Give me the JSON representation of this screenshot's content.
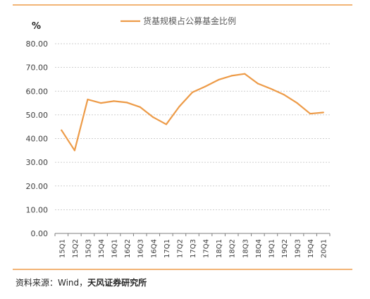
{
  "chart_data": {
    "type": "line",
    "unit_label": "%",
    "series": [
      {
        "name": "货基规模占公募基金比例",
        "values": [
          43.5,
          35.0,
          56.5,
          55.0,
          55.8,
          55.2,
          53.3,
          49.0,
          46.0,
          53.5,
          59.5,
          62.0,
          64.8,
          66.5,
          67.3,
          63.2,
          61.0,
          58.5,
          55.0,
          50.5,
          51.0
        ]
      }
    ],
    "categories": [
      "15Q1",
      "15Q2",
      "15Q3",
      "15Q4",
      "16Q1",
      "16Q2",
      "16Q3",
      "16Q4",
      "17Q1",
      "17Q2",
      "17Q3",
      "17Q4",
      "18Q1",
      "18Q2",
      "18Q3",
      "18Q4",
      "19Q1",
      "19Q2",
      "19Q3",
      "19Q4",
      "20Q1"
    ],
    "ylim": [
      0,
      80
    ],
    "yticks": [
      "0.00",
      "10.00",
      "20.00",
      "30.00",
      "40.00",
      "50.00",
      "60.00",
      "70.00",
      "80.00"
    ],
    "grid": true,
    "legend_position": "top",
    "line_color": "#ED9B48",
    "grid_color": "#BFBFBF",
    "axis_color": "#7F7F7F"
  },
  "source": {
    "prefix": "资料来源：Wind，",
    "brand": "天风证券研究所"
  }
}
